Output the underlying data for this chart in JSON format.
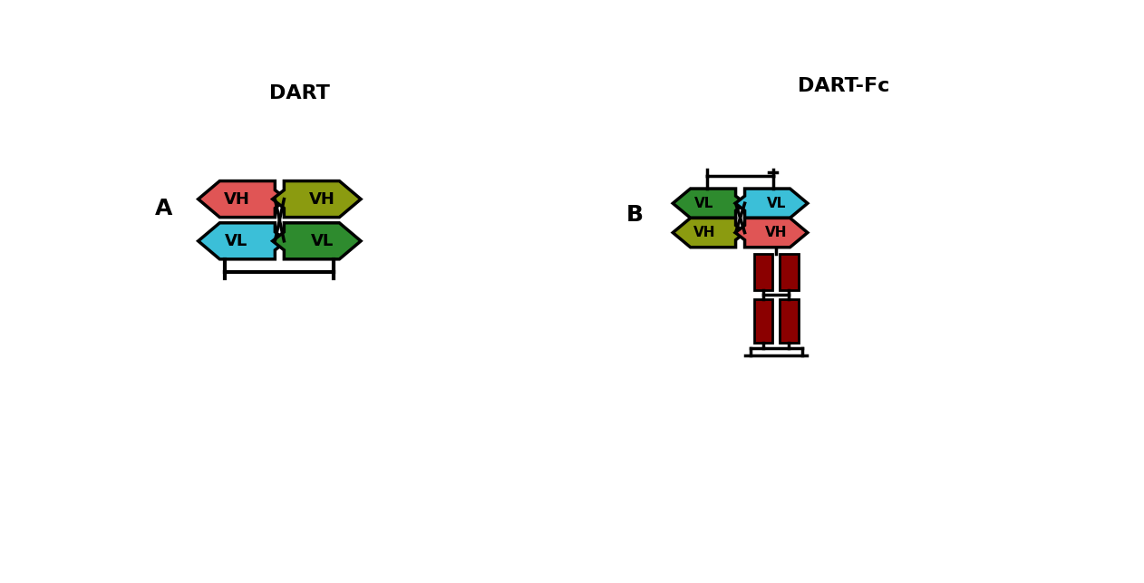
{
  "title_A": "DART",
  "title_B": "DART-Fc",
  "label_A": "A",
  "label_B": "B",
  "colors": {
    "red": "#E05555",
    "cyan": "#3BBFD8",
    "olive": "#8B9B10",
    "green": "#2E8B2E",
    "dark_red": "#8B0000",
    "black": "#111111",
    "white": "#FFFFFF"
  },
  "bg_color": "#FFFFFF"
}
